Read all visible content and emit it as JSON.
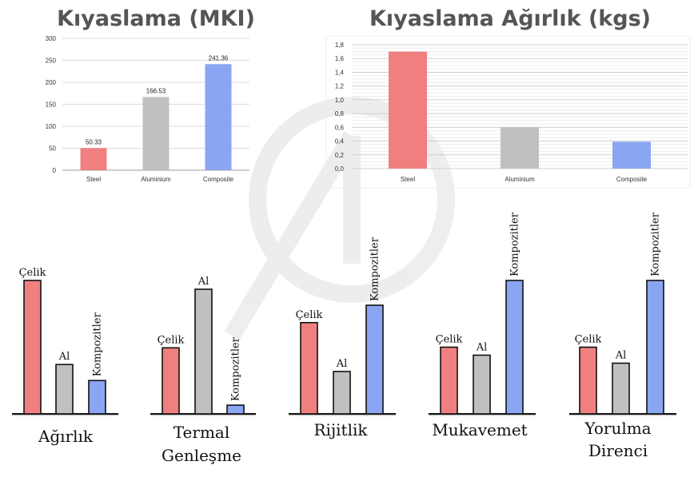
{
  "chart_data": [
    {
      "type": "bar",
      "title": "Kıyaslama (MKI)",
      "categories": [
        "Steel",
        "Aluminium",
        "Composite"
      ],
      "values": [
        50.33,
        166.53,
        241.36
      ],
      "value_labels": [
        "50.33",
        "166.53",
        "241.36"
      ],
      "colors": [
        "#f08080",
        "#c0c0c0",
        "#8aa6f2"
      ],
      "ylim": [
        0,
        300
      ],
      "yticks": [
        "0",
        "50",
        "100",
        "150",
        "200",
        "250",
        "300"
      ],
      "grid": true,
      "xlabel": "",
      "ylabel": ""
    },
    {
      "type": "bar",
      "title": "Kıyaslama Ağırlık (kgs)",
      "categories": [
        "Steel",
        "Aluminium",
        "Composite"
      ],
      "values": [
        1.7,
        0.6,
        0.39
      ],
      "colors": [
        "#f08080",
        "#c0c0c0",
        "#8aa6f2"
      ],
      "ylim": [
        0,
        1.8
      ],
      "yticks": [
        "0,0",
        "0,2",
        "0,4",
        "0,6",
        "0,8",
        "1,0",
        "1,2",
        "1,4",
        "1,6",
        "1,8"
      ],
      "grid": true,
      "xlabel": "",
      "ylabel": ""
    },
    {
      "type": "bar",
      "title": "Ağırlık",
      "categories": [
        "Çelik",
        "Al",
        "Kompozitler"
      ],
      "values": [
        1.0,
        0.37,
        0.25
      ],
      "colors": [
        "#f08080",
        "#c0c0c0",
        "#8aa6f2"
      ]
    },
    {
      "type": "bar",
      "title": "Termal Genleşme",
      "categories": [
        "Çelik",
        "Al",
        "Kompozitler"
      ],
      "values": [
        0.53,
        1.0,
        0.07
      ],
      "colors": [
        "#f08080",
        "#c0c0c0",
        "#8aa6f2"
      ]
    },
    {
      "type": "bar",
      "title": "Rijitlik",
      "categories": [
        "Çelik",
        "Al",
        "Kompozitler"
      ],
      "values": [
        0.84,
        0.39,
        1.0
      ],
      "colors": [
        "#f08080",
        "#c0c0c0",
        "#8aa6f2"
      ]
    },
    {
      "type": "bar",
      "title": "Mukavemet",
      "categories": [
        "Çelik",
        "Al",
        "Kompozitler"
      ],
      "values": [
        0.5,
        0.44,
        1.0
      ],
      "colors": [
        "#f08080",
        "#c0c0c0",
        "#8aa6f2"
      ]
    },
    {
      "type": "bar",
      "title": "Yorulma Direnci",
      "categories": [
        "Çelik",
        "Al",
        "Kompozitler"
      ],
      "values": [
        0.5,
        0.38,
        1.0
      ],
      "colors": [
        "#f08080",
        "#c0c0c0",
        "#8aa6f2"
      ]
    }
  ]
}
